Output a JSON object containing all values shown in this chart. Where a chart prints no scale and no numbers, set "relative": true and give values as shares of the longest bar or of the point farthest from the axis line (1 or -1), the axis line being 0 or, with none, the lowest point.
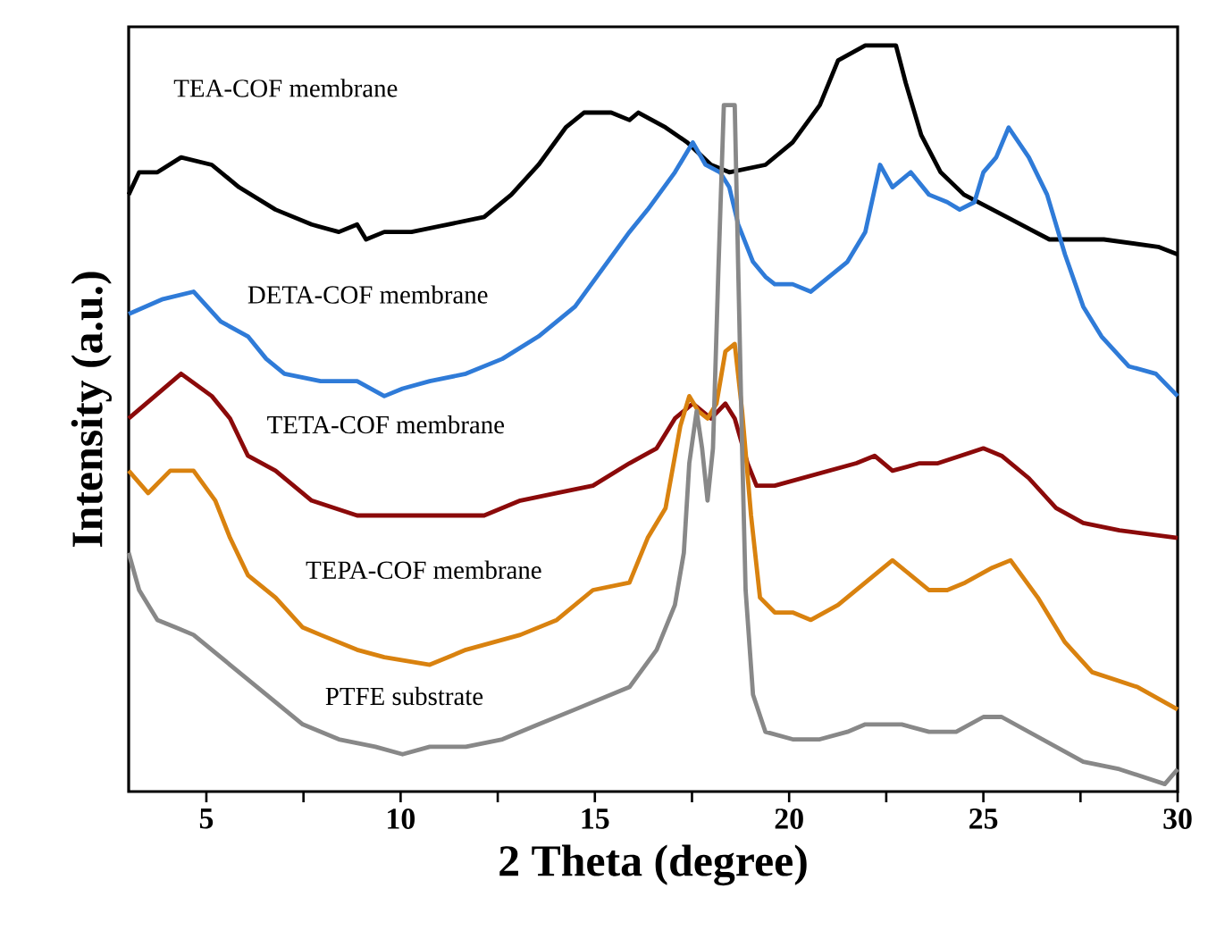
{
  "chart_data": {
    "type": "line",
    "xlabel": "2 Theta (degree)",
    "ylabel": "Intensity (a.u.)",
    "relative": true,
    "xlim": [
      3,
      30
    ],
    "xticks": [
      5,
      {
        "value": 7.5,
        "label": null
      },
      10,
      {
        "value": 12.5,
        "label": null
      },
      15,
      {
        "value": 17.5,
        "label": null
      },
      20,
      {
        "value": 22.5,
        "label": null
      },
      25,
      {
        "value": 27.5,
        "label": null
      },
      30
    ],
    "series": [
      {
        "name": "TEA-COF membrane",
        "color": "#000000",
        "x": [
          3.0,
          3.27,
          3.74,
          4.35,
          5.14,
          5.84,
          6.78,
          7.71,
          8.41,
          8.88,
          9.11,
          9.58,
          10.28,
          11.21,
          12.15,
          12.85,
          13.55,
          14.25,
          14.72,
          15.42,
          15.89,
          16.12,
          16.82,
          17.38,
          17.99,
          18.46,
          19.39,
          20.09,
          20.79,
          21.26,
          21.96,
          22.75,
          23.0,
          23.4,
          23.9,
          24.5,
          25.6,
          26.7,
          28.1,
          29.5,
          30.0
        ],
        "values": [
          0.8,
          0.83,
          0.83,
          0.85,
          0.84,
          0.81,
          0.78,
          0.76,
          0.75,
          0.76,
          0.74,
          0.75,
          0.75,
          0.76,
          0.77,
          0.8,
          0.84,
          0.89,
          0.91,
          0.91,
          0.9,
          0.91,
          0.89,
          0.87,
          0.84,
          0.83,
          0.84,
          0.87,
          0.92,
          0.98,
          1.0,
          1.0,
          0.95,
          0.88,
          0.83,
          0.8,
          0.77,
          0.74,
          0.74,
          0.73,
          0.72
        ]
      },
      {
        "name": "DETA-COF membrane",
        "color": "#2f7bd8",
        "x": [
          3.0,
          3.88,
          4.67,
          5.37,
          6.07,
          6.54,
          7.01,
          7.94,
          8.88,
          9.58,
          10.05,
          10.75,
          11.68,
          12.62,
          13.55,
          14.49,
          15.19,
          15.89,
          16.36,
          17.06,
          17.52,
          17.85,
          18.22,
          18.46,
          18.69,
          19.07,
          19.39,
          19.63,
          20.09,
          20.56,
          21.03,
          21.5,
          21.96,
          22.34,
          22.66,
          23.13,
          23.6,
          24.07,
          24.39,
          24.77,
          25.0,
          25.33,
          25.65,
          26.17,
          26.64,
          27.1,
          27.57,
          28.04,
          28.74,
          29.44,
          30.0
        ],
        "values": [
          0.64,
          0.66,
          0.67,
          0.63,
          0.61,
          0.58,
          0.56,
          0.55,
          0.55,
          0.53,
          0.54,
          0.55,
          0.56,
          0.58,
          0.61,
          0.65,
          0.7,
          0.75,
          0.78,
          0.83,
          0.87,
          0.84,
          0.83,
          0.81,
          0.76,
          0.71,
          0.69,
          0.68,
          0.68,
          0.67,
          0.69,
          0.71,
          0.75,
          0.84,
          0.81,
          0.83,
          0.8,
          0.79,
          0.78,
          0.79,
          0.83,
          0.85,
          0.89,
          0.85,
          0.8,
          0.72,
          0.65,
          0.61,
          0.57,
          0.56,
          0.53
        ]
      },
      {
        "name": "TETA-COF membrane",
        "color": "#8b0a0a",
        "x": [
          3.0,
          4.35,
          5.14,
          5.61,
          6.07,
          6.78,
          7.71,
          8.88,
          10.28,
          11.21,
          12.15,
          13.08,
          14.02,
          14.95,
          15.89,
          16.59,
          17.06,
          17.52,
          17.99,
          18.36,
          18.6,
          18.93,
          19.16,
          19.63,
          20.33,
          21.03,
          21.73,
          22.2,
          22.66,
          23.36,
          23.83,
          25.0,
          25.47,
          26.17,
          26.87,
          27.57,
          28.5,
          30.0
        ],
        "values": [
          0.5,
          0.56,
          0.53,
          0.5,
          0.45,
          0.43,
          0.39,
          0.37,
          0.37,
          0.37,
          0.37,
          0.39,
          0.4,
          0.41,
          0.44,
          0.46,
          0.5,
          0.52,
          0.5,
          0.52,
          0.5,
          0.44,
          0.41,
          0.41,
          0.42,
          0.43,
          0.44,
          0.45,
          0.43,
          0.44,
          0.44,
          0.46,
          0.45,
          0.42,
          0.38,
          0.36,
          0.35,
          0.34
        ]
      },
      {
        "name": "TEPA-COF membrane",
        "color": "#d9820f",
        "x": [
          3.0,
          3.5,
          4.07,
          4.67,
          5.23,
          5.61,
          6.07,
          6.78,
          7.48,
          7.94,
          8.88,
          9.58,
          10.75,
          11.68,
          13.08,
          14.02,
          14.95,
          15.89,
          16.36,
          16.82,
          17.2,
          17.43,
          17.66,
          17.9,
          18.13,
          18.36,
          18.6,
          18.79,
          19.02,
          19.25,
          19.63,
          20.09,
          20.56,
          21.26,
          21.96,
          22.66,
          23.13,
          23.6,
          24.07,
          24.53,
          25.23,
          25.7,
          26.4,
          27.1,
          27.8,
          28.97,
          30.0
        ],
        "values": [
          0.43,
          0.4,
          0.43,
          0.43,
          0.39,
          0.34,
          0.29,
          0.26,
          0.22,
          0.21,
          0.19,
          0.18,
          0.17,
          0.19,
          0.21,
          0.23,
          0.27,
          0.28,
          0.34,
          0.38,
          0.49,
          0.53,
          0.51,
          0.5,
          0.52,
          0.59,
          0.6,
          0.51,
          0.37,
          0.26,
          0.24,
          0.24,
          0.23,
          0.25,
          0.28,
          0.31,
          0.29,
          0.27,
          0.27,
          0.28,
          0.3,
          0.31,
          0.26,
          0.2,
          0.16,
          0.14,
          0.11
        ]
      },
      {
        "name": "PTFE substrate",
        "color": "#888888",
        "x": [
          3.0,
          3.27,
          3.74,
          4.21,
          4.67,
          5.14,
          5.84,
          6.54,
          7.48,
          8.41,
          9.35,
          10.05,
          10.75,
          11.68,
          12.62,
          13.55,
          14.49,
          15.89,
          16.59,
          17.06,
          17.29,
          17.43,
          17.62,
          17.76,
          17.9,
          18.04,
          18.18,
          18.32,
          18.46,
          18.6,
          18.69,
          18.79,
          18.88,
          19.07,
          19.39,
          20.09,
          20.79,
          21.5,
          21.96,
          22.9,
          23.6,
          24.3,
          25.0,
          25.47,
          26.17,
          26.87,
          27.57,
          28.5,
          29.67,
          30.0
        ],
        "values": [
          0.32,
          0.27,
          0.23,
          0.22,
          0.21,
          0.19,
          0.16,
          0.13,
          0.09,
          0.07,
          0.06,
          0.05,
          0.06,
          0.06,
          0.07,
          0.09,
          0.11,
          0.14,
          0.19,
          0.25,
          0.32,
          0.44,
          0.51,
          0.46,
          0.39,
          0.46,
          0.7,
          0.92,
          0.92,
          0.92,
          0.7,
          0.46,
          0.27,
          0.13,
          0.08,
          0.07,
          0.07,
          0.08,
          0.09,
          0.09,
          0.08,
          0.08,
          0.1,
          0.1,
          0.08,
          0.06,
          0.04,
          0.03,
          0.01,
          0.03
        ]
      }
    ]
  }
}
